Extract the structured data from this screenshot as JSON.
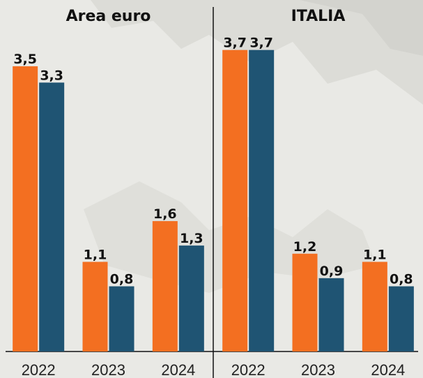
{
  "chart_data": [
    {
      "type": "bar",
      "title": "Area euro",
      "categories": [
        "2022",
        "2023",
        "2024"
      ],
      "series": [
        {
          "color": "#f36f21",
          "values": [
            3.5,
            1.1,
            1.6
          ],
          "value_labels": [
            "3,5",
            "1,1",
            "1,6"
          ]
        },
        {
          "color": "#1f5473",
          "values": [
            3.3,
            0.8,
            1.3
          ],
          "value_labels": [
            "3,3",
            "0,8",
            "1,3"
          ]
        }
      ],
      "ylim": [
        0,
        3.8
      ]
    },
    {
      "type": "bar",
      "title": "ITALIA",
      "categories": [
        "2022",
        "2023",
        "2024"
      ],
      "series": [
        {
          "color": "#f36f21",
          "values": [
            3.7,
            1.2,
            1.1
          ],
          "value_labels": [
            "3,7",
            "1,2",
            "1,1"
          ]
        },
        {
          "color": "#1f5473",
          "values": [
            3.7,
            0.9,
            0.8
          ],
          "value_labels": [
            "3,7",
            "0,9",
            "0,8"
          ]
        }
      ],
      "ylim": [
        0,
        3.8
      ]
    }
  ]
}
